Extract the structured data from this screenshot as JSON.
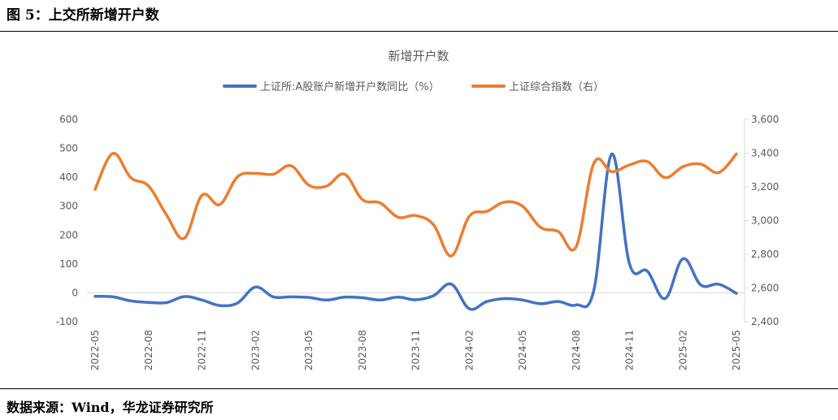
{
  "figure_title": "图 5：上交所新增开户数",
  "source": "数据来源：Wind，华龙证券研究所",
  "chart_data": {
    "type": "line",
    "title": "新增开户数",
    "legend_position": "top",
    "grid": false,
    "x": [
      "2022-05",
      "2022-06",
      "2022-07",
      "2022-08",
      "2022-09",
      "2022-10",
      "2022-11",
      "2022-12",
      "2023-01",
      "2023-02",
      "2023-03",
      "2023-04",
      "2023-05",
      "2023-06",
      "2023-07",
      "2023-08",
      "2023-09",
      "2023-10",
      "2023-11",
      "2023-12",
      "2024-01",
      "2024-02",
      "2024-03",
      "2024-04",
      "2024-05",
      "2024-06",
      "2024-07",
      "2024-08",
      "2024-09",
      "2024-10",
      "2024-11",
      "2024-12",
      "2025-01",
      "2025-02",
      "2025-03",
      "2025-04",
      "2025-05"
    ],
    "x_tick_labels": [
      "2022-05",
      "2022-08",
      "2022-11",
      "2023-02",
      "2023-05",
      "2023-08",
      "2023-11",
      "2024-02",
      "2024-05",
      "2024-08",
      "2024-11",
      "2025-02",
      "2025-05"
    ],
    "y_left": {
      "range": [
        -100,
        600
      ],
      "ticks": [
        "-100",
        "0",
        "100",
        "200",
        "300",
        "400",
        "500",
        "600"
      ]
    },
    "y_right": {
      "range": [
        2400,
        3600
      ],
      "ticks": [
        "2,400",
        "2,600",
        "2,800",
        "3,000",
        "3,200",
        "3,400",
        "3,600"
      ]
    },
    "series": [
      {
        "name": "上证所:A股账户新增开户数同比（%）",
        "axis": "left",
        "color": "#4472C4",
        "values": [
          -12,
          -14,
          -28,
          -33,
          -34,
          -13,
          -25,
          -44,
          -35,
          20,
          -14,
          -14,
          -16,
          -25,
          -15,
          -17,
          -25,
          -15,
          -24,
          -10,
          30,
          -55,
          -30,
          -20,
          -25,
          -38,
          -30,
          -42,
          10,
          480,
          100,
          75,
          -20,
          118,
          27,
          30,
          -2
        ]
      },
      {
        "name": "上证综合指数（右）",
        "axis": "right",
        "color": "#ED7D31",
        "values": [
          3185,
          3398,
          3255,
          3205,
          3035,
          2895,
          3150,
          3095,
          3260,
          3280,
          3275,
          3325,
          3210,
          3205,
          3275,
          3125,
          3105,
          3020,
          3030,
          2975,
          2790,
          3025,
          3055,
          3110,
          3085,
          2960,
          2935,
          2845,
          3340,
          3290,
          3330,
          3350,
          3255,
          3320,
          3335,
          3285,
          3395
        ]
      }
    ]
  }
}
